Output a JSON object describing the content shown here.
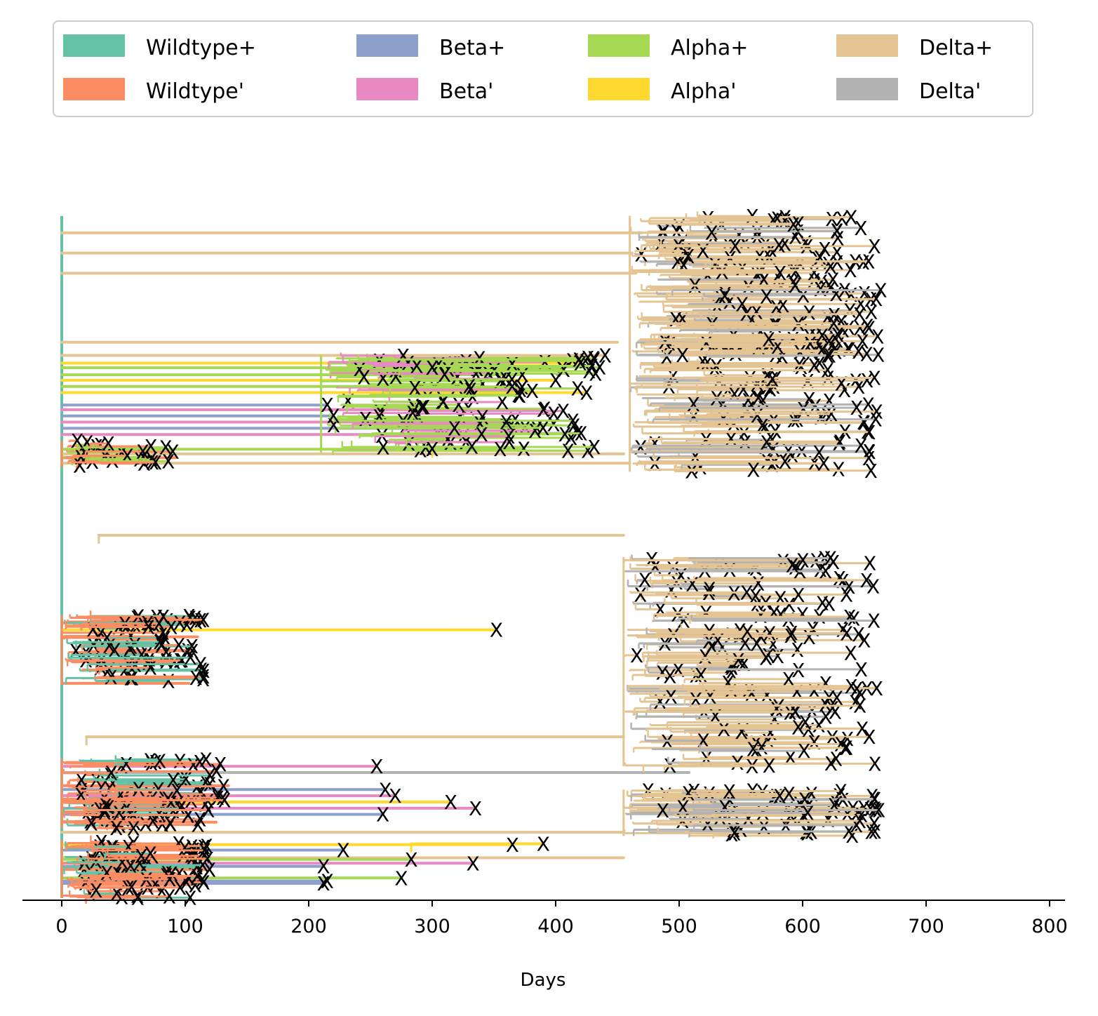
{
  "chart_data": {
    "type": "line",
    "subtype": "transmission-tree",
    "title": "",
    "xlabel": "Days",
    "ylabel": "",
    "xlim": [
      -32,
      813
    ],
    "xticks": [
      0,
      100,
      200,
      300,
      400,
      500,
      600,
      700,
      800
    ],
    "grid": false,
    "legend": {
      "placement": "top",
      "columns": 4,
      "entries": [
        {
          "label": "Wildtype+",
          "color": "#66c2a5"
        },
        {
          "label": "Wildtype'",
          "color": "#fc8d62"
        },
        {
          "label": "Beta+",
          "color": "#8da0cb"
        },
        {
          "label": "Beta'",
          "color": "#e78ac3"
        },
        {
          "label": "Alpha+",
          "color": "#a6d854"
        },
        {
          "label": "Alpha'",
          "color": "#ffd92f"
        },
        {
          "label": "Delta+",
          "color": "#e5c494"
        },
        {
          "label": "Delta'",
          "color": "#b3b3b3"
        }
      ]
    },
    "end_marker": "X",
    "root": {
      "x": 0,
      "y_top": 0.88,
      "y_bottom": 0.0,
      "variant": "Wildtype+"
    },
    "branches": [
      {
        "variant": "Delta+",
        "x0": 0,
        "x1": 470,
        "y": 0.858
      },
      {
        "variant": "Delta+",
        "x0": 0,
        "x1": 462,
        "y": 0.832
      },
      {
        "variant": "Delta+",
        "x0": 0,
        "x1": 465,
        "y": 0.806
      },
      {
        "variant": "Delta+",
        "x0": 0,
        "x1": 450,
        "y": 0.717
      },
      {
        "variant": "Delta+",
        "x0": 0,
        "x1": 440,
        "y": 0.7
      },
      {
        "variant": "Alpha'",
        "x0": 0,
        "x1": 420,
        "y": 0.69
      },
      {
        "variant": "Alpha+",
        "x0": 0,
        "x1": 300,
        "y": 0.684
      },
      {
        "variant": "Alpha+",
        "x0": 0,
        "x1": 310,
        "y": 0.675
      },
      {
        "variant": "Alpha'",
        "x0": 0,
        "x1": 400,
        "y": 0.668
      },
      {
        "variant": "Alpha+",
        "x0": 0,
        "x1": 330,
        "y": 0.66
      },
      {
        "variant": "Alpha'",
        "x0": 0,
        "x1": 425,
        "y": 0.652
      },
      {
        "variant": "Beta+",
        "x0": 0,
        "x1": 215,
        "y": 0.636
      },
      {
        "variant": "Beta'",
        "x0": 0,
        "x1": 390,
        "y": 0.63
      },
      {
        "variant": "Beta+",
        "x0": 0,
        "x1": 220,
        "y": 0.622
      },
      {
        "variant": "Beta'",
        "x0": 0,
        "x1": 360,
        "y": 0.614
      },
      {
        "variant": "Beta+",
        "x0": 0,
        "x1": 318,
        "y": 0.606
      },
      {
        "variant": "Beta'",
        "x0": 0,
        "x1": 340,
        "y": 0.598
      },
      {
        "variant": "Alpha+",
        "x0": 0,
        "x1": 300,
        "y": 0.579
      },
      {
        "variant": "Alpha'",
        "x0": 300,
        "x1": 355,
        "y": 0.579
      },
      {
        "variant": "Wildtype'",
        "x0": 0,
        "x1": 92,
        "y": 0.568
      },
      {
        "variant": "Delta+",
        "x0": 0,
        "x1": 455,
        "y": 0.573
      },
      {
        "variant": "Delta+",
        "x0": 0,
        "x1": 460,
        "y": 0.561
      },
      {
        "variant": "Delta+",
        "x0": 30,
        "x1": 455,
        "y": 0.468
      },
      {
        "variant": "Alpha'",
        "x0": 0,
        "x1": 352,
        "y": 0.346
      },
      {
        "variant": "Wildtype'",
        "x0": 0,
        "x1": 115,
        "y": 0.355
      },
      {
        "variant": "Wildtype'",
        "x0": 0,
        "x1": 110,
        "y": 0.337
      },
      {
        "variant": "Wildtype'",
        "x0": 0,
        "x1": 103,
        "y": 0.277
      },
      {
        "variant": "Delta+",
        "x0": 20,
        "x1": 455,
        "y": 0.208
      },
      {
        "variant": "Beta'",
        "x0": 0,
        "x1": 255,
        "y": 0.17
      },
      {
        "variant": "Delta'",
        "x0": 0,
        "x1": 508,
        "y": 0.162
      },
      {
        "variant": "Wildtype'",
        "x0": 0,
        "x1": 135,
        "y": 0.145
      },
      {
        "variant": "Beta+",
        "x0": 0,
        "x1": 262,
        "y": 0.14
      },
      {
        "variant": "Beta'",
        "x0": 0,
        "x1": 270,
        "y": 0.132
      },
      {
        "variant": "Alpha'",
        "x0": 0,
        "x1": 315,
        "y": 0.124
      },
      {
        "variant": "Beta'",
        "x0": 0,
        "x1": 335,
        "y": 0.116
      },
      {
        "variant": "Beta+",
        "x0": 0,
        "x1": 260,
        "y": 0.108
      },
      {
        "variant": "Wildtype'",
        "x0": 0,
        "x1": 125,
        "y": 0.098
      },
      {
        "variant": "Alpha'",
        "x0": 0,
        "x1": 365,
        "y": 0.069
      },
      {
        "variant": "Beta+",
        "x0": 0,
        "x1": 228,
        "y": 0.062
      },
      {
        "variant": "Delta+",
        "x0": 0,
        "x1": 455,
        "y": 0.052
      },
      {
        "variant": "Beta'",
        "x0": 0,
        "x1": 333,
        "y": 0.045
      },
      {
        "variant": "Beta+",
        "x0": 0,
        "x1": 212,
        "y": 0.041
      },
      {
        "variant": "Wildtype'",
        "x0": 0,
        "x1": 120,
        "y": 0.037
      },
      {
        "variant": "Beta+",
        "x0": 0,
        "x1": 212,
        "y": 0.019
      },
      {
        "variant": "Alpha+",
        "x0": 0,
        "x1": 283,
        "y": 0.05
      },
      {
        "variant": "Alpha'",
        "x0": 283,
        "x1": 390,
        "y": 0.07
      },
      {
        "variant": "Alpha+",
        "x0": 0,
        "x1": 275,
        "y": 0.026
      },
      {
        "variant": "Beta+",
        "x0": 0,
        "x1": 215,
        "y": 0.022
      },
      {
        "variant": "Delta+",
        "x0": 0,
        "x1": 455,
        "y": 0.085
      }
    ],
    "clusters": [
      {
        "x_min": 460,
        "x_max": 665,
        "y_min": 0.7,
        "y_max": 0.88,
        "dominant": "Delta+",
        "secondary": "Delta'",
        "count": 150
      },
      {
        "x_min": 460,
        "x_max": 660,
        "y_min": 0.55,
        "y_max": 0.73,
        "dominant": "Delta+",
        "secondary": "Delta'",
        "count": 130
      },
      {
        "x_min": 455,
        "x_max": 660,
        "y_min": 0.17,
        "y_max": 0.44,
        "dominant": "Delta+",
        "secondary": "Delta'",
        "count": 170
      },
      {
        "x_min": 455,
        "x_max": 665,
        "y_min": 0.08,
        "y_max": 0.14,
        "dominant": "Delta+",
        "secondary": "Delta'",
        "count": 70
      },
      {
        "x_min": 210,
        "x_max": 440,
        "y_min": 0.575,
        "y_max": 0.7,
        "dominant": "Alpha+",
        "secondary": "Beta'",
        "count": 110
      },
      {
        "x_min": 0,
        "x_max": 95,
        "y_min": 0.555,
        "y_max": 0.59,
        "dominant": "Wildtype'",
        "secondary": "Alpha+",
        "count": 25
      },
      {
        "x_min": 0,
        "x_max": 115,
        "y_min": 0.28,
        "y_max": 0.365,
        "dominant": "Wildtype'",
        "secondary": "Wildtype+",
        "count": 80
      },
      {
        "x_min": 0,
        "x_max": 135,
        "y_min": 0.09,
        "y_max": 0.18,
        "dominant": "Wildtype'",
        "secondary": "Wildtype+",
        "count": 90
      },
      {
        "x_min": 0,
        "x_max": 120,
        "y_min": 0.0,
        "y_max": 0.075,
        "dominant": "Wildtype'",
        "secondary": "Wildtype+",
        "count": 80
      }
    ]
  }
}
